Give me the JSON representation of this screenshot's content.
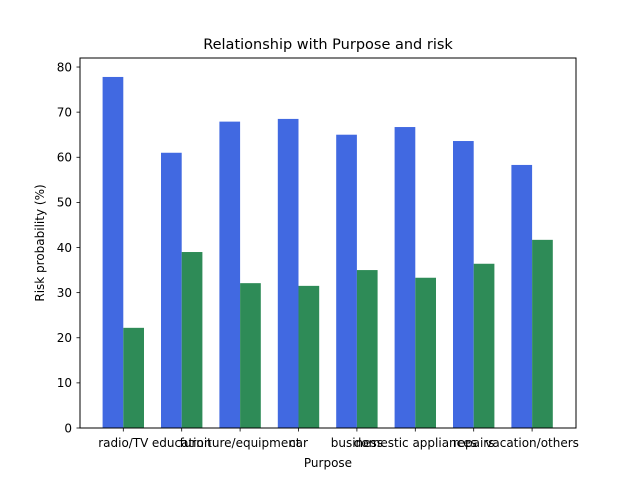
{
  "chart_data": {
    "type": "bar",
    "title": "Relationship with Purpose and risk",
    "xlabel": "Purpose",
    "ylabel": "Risk probability (%)",
    "categories": [
      "radio/TV",
      "education",
      "furniture/equipment",
      "car",
      "business",
      "domestic appliances",
      "repairs",
      "vacation/others"
    ],
    "series": [
      {
        "values": [
          77.8,
          61.0,
          67.9,
          68.5,
          65.0,
          66.7,
          63.6,
          58.3
        ],
        "color": "#4169e1"
      },
      {
        "values": [
          22.2,
          39.0,
          32.1,
          31.5,
          35.0,
          33.3,
          36.4,
          41.7
        ],
        "color": "#2e8b57"
      }
    ],
    "ylim": [
      0,
      82
    ],
    "yticks": [
      0,
      10,
      20,
      30,
      40,
      50,
      60,
      70,
      80
    ],
    "grid": false,
    "legend": "none"
  }
}
